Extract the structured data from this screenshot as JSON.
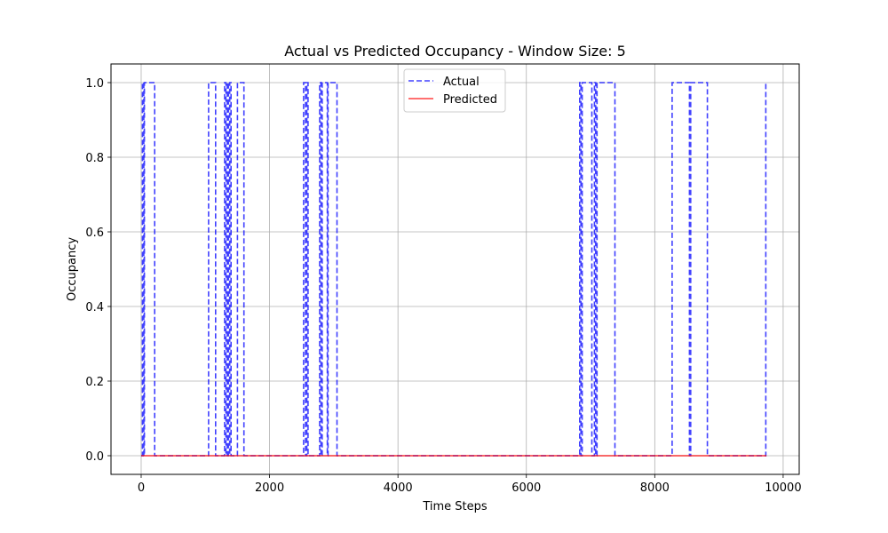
{
  "chart_data": {
    "type": "line",
    "title": "Actual vs Predicted Occupancy - Window Size: 5",
    "xlabel": "Time Steps",
    "ylabel": "Occupancy",
    "xlim": [
      -470,
      10250
    ],
    "ylim": [
      -0.05,
      1.05
    ],
    "xticks": [
      0,
      2000,
      4000,
      6000,
      8000,
      10000
    ],
    "xtick_labels": [
      "0",
      "2000",
      "4000",
      "6000",
      "8000",
      "10000"
    ],
    "yticks": [
      0.0,
      0.2,
      0.4,
      0.6,
      0.8,
      1.0
    ],
    "ytick_labels": [
      "0.0",
      "0.2",
      "0.4",
      "0.6",
      "0.8",
      "1.0"
    ],
    "grid": true,
    "legend_position": "top-center",
    "series": [
      {
        "name": "Actual",
        "color": "#0000ff",
        "style": "dashed",
        "step_points": [
          [
            0,
            0
          ],
          [
            20,
            0
          ],
          [
            20,
            1
          ],
          [
            40,
            1
          ],
          [
            40,
            0
          ],
          [
            50,
            0
          ],
          [
            50,
            1
          ],
          [
            210,
            1
          ],
          [
            210,
            0
          ],
          [
            1050,
            0
          ],
          [
            1050,
            1
          ],
          [
            1160,
            1
          ],
          [
            1160,
            0
          ],
          [
            1300,
            0
          ],
          [
            1300,
            1
          ],
          [
            1320,
            1
          ],
          [
            1320,
            0
          ],
          [
            1340,
            0
          ],
          [
            1340,
            1
          ],
          [
            1360,
            1
          ],
          [
            1360,
            0
          ],
          [
            1380,
            0
          ],
          [
            1380,
            1
          ],
          [
            1400,
            1
          ],
          [
            1400,
            0
          ],
          [
            1500,
            0
          ],
          [
            1500,
            1
          ],
          [
            1600,
            1
          ],
          [
            1600,
            0
          ],
          [
            2530,
            0
          ],
          [
            2530,
            1
          ],
          [
            2560,
            1
          ],
          [
            2560,
            0
          ],
          [
            2580,
            0
          ],
          [
            2580,
            1
          ],
          [
            2600,
            1
          ],
          [
            2600,
            0
          ],
          [
            2780,
            0
          ],
          [
            2780,
            1
          ],
          [
            2800,
            1
          ],
          [
            2800,
            0
          ],
          [
            2820,
            0
          ],
          [
            2820,
            1
          ],
          [
            2900,
            1
          ],
          [
            2900,
            0
          ],
          [
            2910,
            0
          ],
          [
            2910,
            1
          ],
          [
            3050,
            1
          ],
          [
            3050,
            0
          ],
          [
            6830,
            0
          ],
          [
            6830,
            1
          ],
          [
            6850,
            1
          ],
          [
            6850,
            0
          ],
          [
            6870,
            0
          ],
          [
            6870,
            1
          ],
          [
            7020,
            1
          ],
          [
            7020,
            0
          ],
          [
            7060,
            0
          ],
          [
            7060,
            1
          ],
          [
            7080,
            1
          ],
          [
            7080,
            0
          ],
          [
            7100,
            0
          ],
          [
            7100,
            1
          ],
          [
            7380,
            1
          ],
          [
            7380,
            0
          ],
          [
            8270,
            0
          ],
          [
            8270,
            1
          ],
          [
            8540,
            1
          ],
          [
            8540,
            0
          ],
          [
            8560,
            0
          ],
          [
            8560,
            1
          ],
          [
            8820,
            1
          ],
          [
            8820,
            0
          ],
          [
            9730,
            0
          ],
          [
            9730,
            1
          ]
        ]
      },
      {
        "name": "Predicted",
        "color": "#ff0000",
        "style": "solid",
        "step_points": [
          [
            0,
            0
          ],
          [
            9740,
            0
          ]
        ]
      }
    ]
  }
}
